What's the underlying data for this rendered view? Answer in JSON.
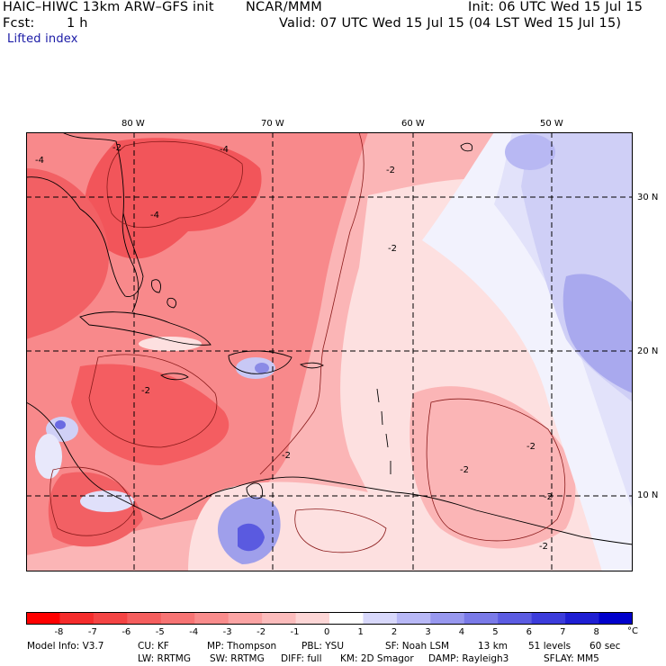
{
  "header": {
    "model_title": "HAIC–HIWC 13km ARW–GFS init",
    "org": "NCAR/MMM",
    "init": "Init: 06 UTC Wed 15 Jul 15",
    "fcst_label": "Fcst:",
    "fcst_value": "1 h",
    "valid": "Valid: 07 UTC Wed 15 Jul 15 (04 LST Wed 15 Jul 15)",
    "field": "Lifted index"
  },
  "map": {
    "lon_labels": [
      "80 W",
      "70 W",
      "60 W",
      "50 W"
    ],
    "lat_labels": [
      "30 N",
      "20 N",
      "10 N"
    ],
    "contour_label": "-2",
    "contour_label_4": "-4",
    "colors": {
      "strong_red": "#f2555a",
      "mid_red": "#f8898b",
      "light_red": "#fbb5b6",
      "pale": "#fde0e0",
      "white": "#ffffff",
      "pale_blue": "#e6e6fb",
      "light_blue": "#c4c4f3",
      "mid_blue": "#9f9feb",
      "deep_blue": "#3b3bd9"
    }
  },
  "colorbar": {
    "tick_labels": [
      "-8",
      "-7",
      "-6",
      "-5",
      "-4",
      "-3",
      "-2",
      "-1",
      "0",
      "1",
      "2",
      "3",
      "4",
      "5",
      "6",
      "7",
      "8"
    ],
    "unit": "°C",
    "colors": [
      "#ff0000",
      "#f52c2c",
      "#f44444",
      "#f55e5e",
      "#f77474",
      "#f98c8c",
      "#fba4a4",
      "#fcbcbc",
      "#fdd6d6",
      "#ffffff",
      "#d8d8fb",
      "#b8b8f6",
      "#9898ef",
      "#7a7ae8",
      "#5c5ce2",
      "#3c3cdb",
      "#1e1ed3",
      "#0000cc"
    ]
  },
  "footer": {
    "line1": [
      "Model Info: V3.7",
      "CU: KF",
      "MP: Thompson",
      "PBL: YSU",
      "SF: Noah LSM",
      "13 km",
      "51 levels",
      "60 sec"
    ],
    "line2": [
      "LW: RRTMG",
      "SW: RRTMG",
      "DIFF: full",
      "KM: 2D Smagor",
      "DAMP: Rayleigh3",
      "SFLAY: MM5"
    ]
  }
}
